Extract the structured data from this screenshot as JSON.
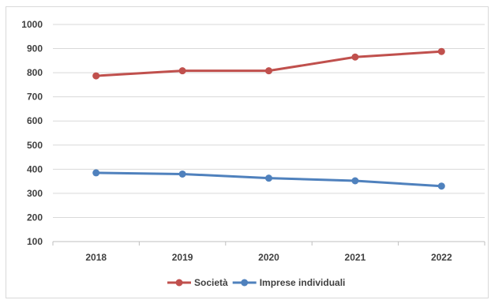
{
  "chart_data": {
    "type": "line",
    "categories": [
      "2018",
      "2019",
      "2020",
      "2021",
      "2022"
    ],
    "series": [
      {
        "name": "Società",
        "color": "#c0504d",
        "values": [
          787,
          808,
          808,
          865,
          888
        ]
      },
      {
        "name": "Imprese individuali",
        "color": "#4f81bd",
        "values": [
          385,
          380,
          363,
          352,
          330
        ]
      }
    ],
    "y_ticks": [
      "1000",
      "900",
      "800",
      "700",
      "600",
      "500",
      "400",
      "300",
      "200",
      "100"
    ],
    "ylim": [
      100,
      1000
    ],
    "grid": true,
    "legend_position": "bottom"
  }
}
